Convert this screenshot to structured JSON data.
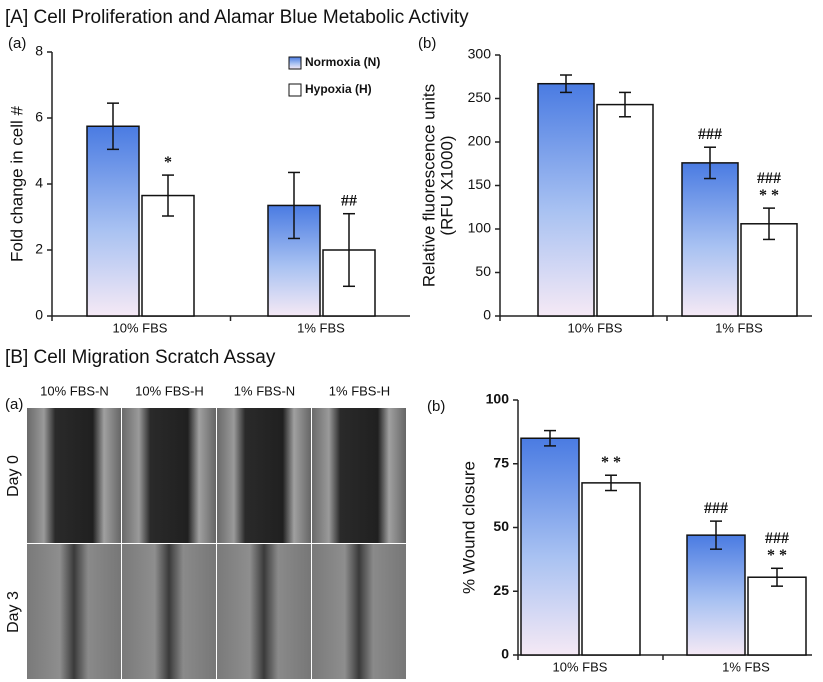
{
  "figure": {
    "section_a": "[A] Cell Proliferation and Alamar Blue Metabolic Activity",
    "section_b": "[B] Cell Migration Scratch Assay",
    "micrographs": {
      "label": "(a)",
      "columns": [
        "10% FBS-N",
        "10% FBS-H",
        "1% FBS-N",
        "1% FBS-H"
      ],
      "rows": [
        "Day 0",
        "Day 3"
      ]
    }
  },
  "chart_data": [
    {
      "type": "bar",
      "label": "(a)",
      "ylabel": [
        "Fold change in cell #"
      ],
      "categories": [
        "10% FBS",
        "1% FBS"
      ],
      "series": [
        {
          "name": "Normoxia (N)",
          "color": "#4a7be2",
          "values": [
            5.75,
            3.35
          ],
          "errors": [
            0.7,
            1.0
          ],
          "annotations": [
            null,
            null
          ]
        },
        {
          "name": "Hypoxia (H)",
          "color": "#ffffff",
          "values": [
            3.65,
            2.0
          ],
          "errors": [
            0.62,
            1.1
          ],
          "annotations": [
            [
              "*"
            ],
            [
              "##"
            ]
          ]
        }
      ],
      "ylim": [
        0,
        8
      ],
      "yticks": [
        0,
        2,
        4,
        6,
        8
      ]
    },
    {
      "type": "bar",
      "label": "(b)",
      "ylabel": [
        "Relative fluorescence units",
        "(RFU X1000)"
      ],
      "categories": [
        "10% FBS",
        "1% FBS"
      ],
      "series": [
        {
          "color": "#4a7be2",
          "values": [
            267,
            176
          ],
          "errors": [
            10,
            18
          ],
          "annotations": [
            null,
            [
              "###"
            ]
          ]
        },
        {
          "color": "#ffffff",
          "values": [
            243,
            106
          ],
          "errors": [
            14,
            18
          ],
          "annotations": [
            null,
            [
              "###",
              "* *"
            ]
          ]
        }
      ],
      "ylim": [
        0,
        300
      ],
      "yticks": [
        0,
        50,
        100,
        150,
        200,
        250,
        300
      ]
    },
    {
      "type": "bar",
      "label": "(b)",
      "ylabel": [
        "% Wound closure"
      ],
      "categories": [
        "10% FBS",
        "1% FBS"
      ],
      "series": [
        {
          "color": "#4a7be2",
          "values": [
            85,
            47
          ],
          "errors": [
            3,
            5.5
          ],
          "annotations": [
            null,
            [
              "###"
            ]
          ]
        },
        {
          "color": "#ffffff",
          "values": [
            67.5,
            30.5
          ],
          "errors": [
            3,
            3.5
          ],
          "annotations": [
            [
              "* *"
            ],
            [
              "###",
              "* *"
            ]
          ]
        }
      ],
      "ylim": [
        0,
        100
      ],
      "yticks": [
        0,
        25,
        50,
        75,
        100
      ]
    }
  ]
}
